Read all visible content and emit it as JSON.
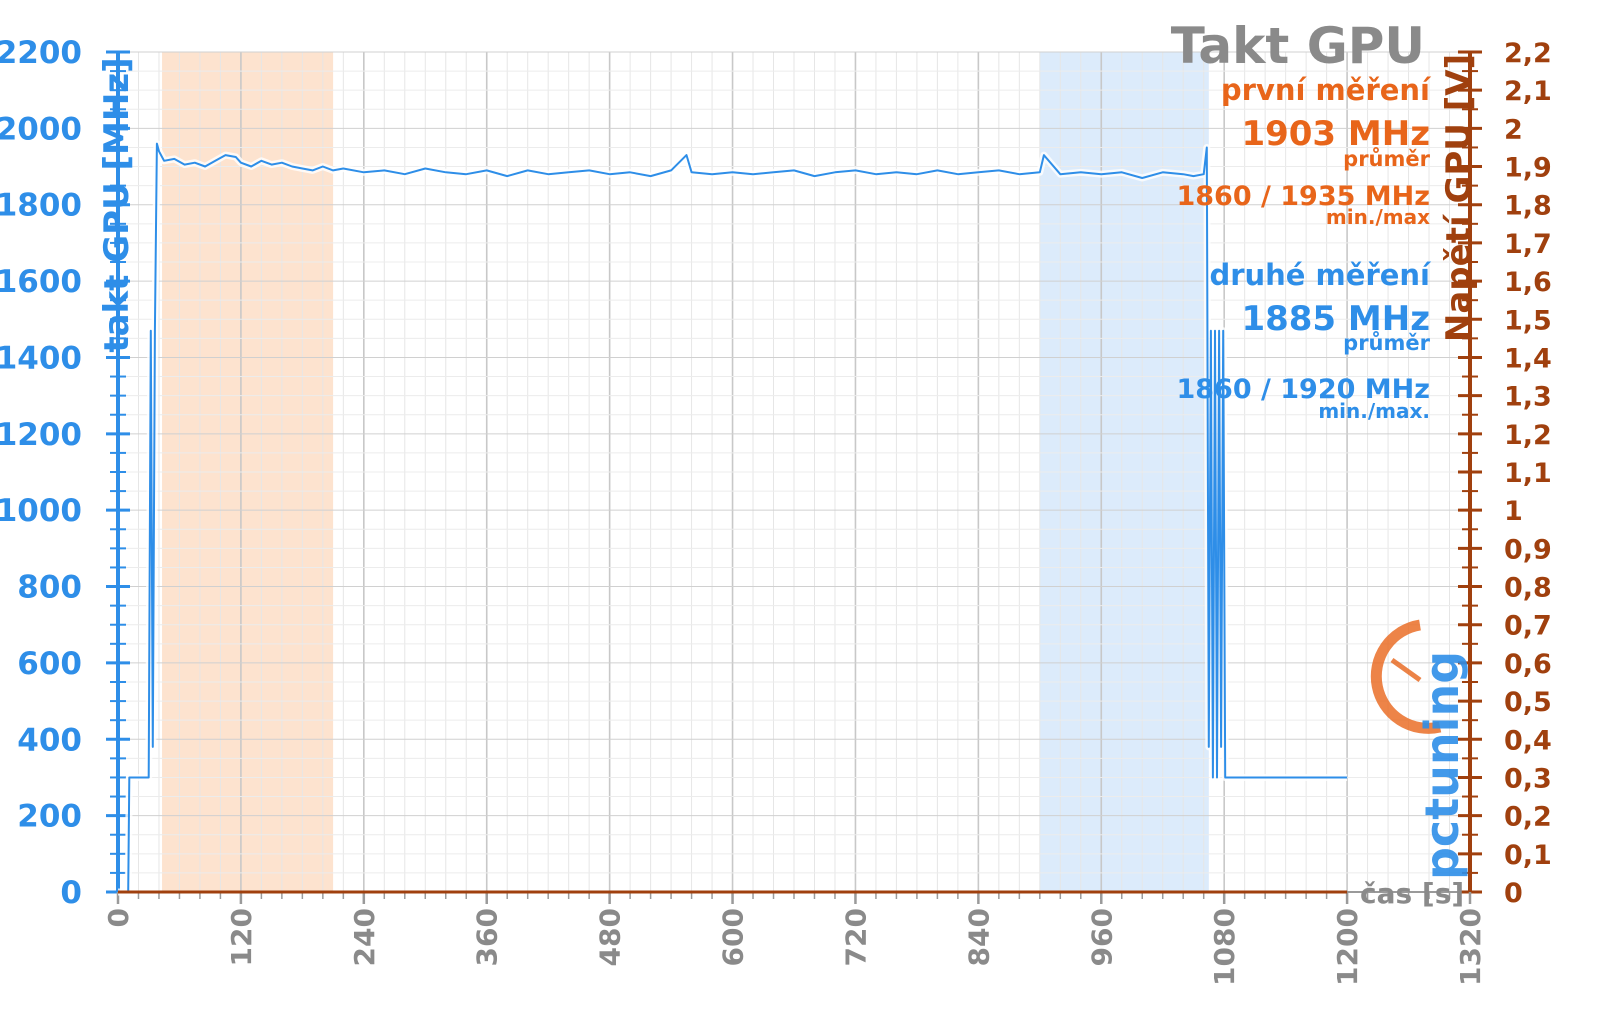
{
  "chart_data": {
    "type": "line",
    "title": "Takt GPU",
    "xlabel": "čas [s]",
    "ylabel": "takt GPU [MHz]",
    "y2label": "Napětí GPU [V]",
    "xlim": [
      0,
      1320
    ],
    "ylim": [
      0,
      2200
    ],
    "y2lim": [
      0,
      2.2
    ],
    "x_ticks": [
      0,
      120,
      240,
      360,
      480,
      600,
      720,
      840,
      960,
      1080,
      1200,
      1320
    ],
    "y_ticks": [
      0,
      200,
      400,
      600,
      800,
      1000,
      1200,
      1400,
      1600,
      1800,
      2000,
      2200
    ],
    "y2_ticks": [
      "0",
      "0,1",
      "0,2",
      "0,3",
      "0,4",
      "0,5",
      "0,6",
      "0,7",
      "0,8",
      "0,9",
      "1",
      "1,1",
      "1,2",
      "1,3",
      "1,4",
      "1,5",
      "1,6",
      "1,7",
      "1,8",
      "1,9",
      "2",
      "2,1",
      "2,2"
    ],
    "grid": true,
    "shaded_regions": [
      {
        "x": [
          43,
          210
        ],
        "color": "#fde3cf"
      },
      {
        "x": [
          900,
          1065
        ],
        "color": "#dcebfb"
      }
    ],
    "series": [
      {
        "color": "#2e8ee8",
        "x": [
          0,
          5,
          10,
          11,
          25,
          30,
          32,
          34,
          36,
          38,
          40,
          45,
          55,
          65,
          75,
          85,
          95,
          105,
          115,
          120,
          130,
          140,
          150,
          160,
          170,
          180,
          190,
          200,
          210,
          220,
          240,
          260,
          280,
          300,
          320,
          340,
          360,
          380,
          400,
          420,
          440,
          460,
          480,
          500,
          520,
          540,
          555,
          560,
          580,
          600,
          620,
          640,
          660,
          680,
          700,
          720,
          740,
          760,
          780,
          800,
          820,
          840,
          860,
          880,
          900,
          904,
          920,
          940,
          960,
          980,
          1000,
          1020,
          1040,
          1050,
          1060,
          1063,
          1065,
          1067,
          1069,
          1071,
          1073,
          1075,
          1077,
          1079,
          1081,
          1083,
          1085,
          1087,
          1090,
          1100,
          1150,
          1200
        ],
        "values": [
          0,
          0,
          0,
          300,
          300,
          300,
          1470,
          380,
          1470,
          1960,
          1940,
          1915,
          1920,
          1905,
          1910,
          1900,
          1915,
          1930,
          1925,
          1910,
          1900,
          1915,
          1905,
          1910,
          1900,
          1895,
          1890,
          1900,
          1890,
          1895,
          1885,
          1890,
          1880,
          1895,
          1885,
          1880,
          1890,
          1875,
          1890,
          1880,
          1885,
          1890,
          1880,
          1885,
          1875,
          1890,
          1930,
          1885,
          1880,
          1885,
          1880,
          1885,
          1890,
          1875,
          1885,
          1890,
          1880,
          1885,
          1880,
          1890,
          1880,
          1885,
          1890,
          1880,
          1885,
          1930,
          1880,
          1885,
          1880,
          1885,
          1870,
          1885,
          1880,
          1875,
          1880,
          1950,
          380,
          1470,
          300,
          1470,
          300,
          1470,
          380,
          1470,
          300,
          300,
          300,
          300,
          300,
          300,
          300,
          300
        ]
      },
      {
        "color": "#a0400e",
        "axis": "right",
        "x": [
          0,
          1200
        ],
        "values": [
          0,
          0
        ]
      }
    ],
    "annotations": {
      "first_label": "první měření",
      "first_avg": "1903 MHz",
      "first_avg_caption": "průměr",
      "first_minmax": "1860 / 1935 MHz",
      "first_minmax_caption": "min./max",
      "second_label": "druhé měření",
      "second_avg": "1885 MHz",
      "second_avg_caption": "průměr",
      "second_minmax": "1860 / 1920 MHz",
      "second_minmax_caption": "min./max."
    }
  },
  "logo": {
    "text": "pctuning"
  },
  "colors": {
    "blue": "#2e8ee8",
    "brown": "#a0400e",
    "orange": "#e8651a",
    "gray": "#8a8a8a",
    "grid": "#d6d6d6"
  }
}
